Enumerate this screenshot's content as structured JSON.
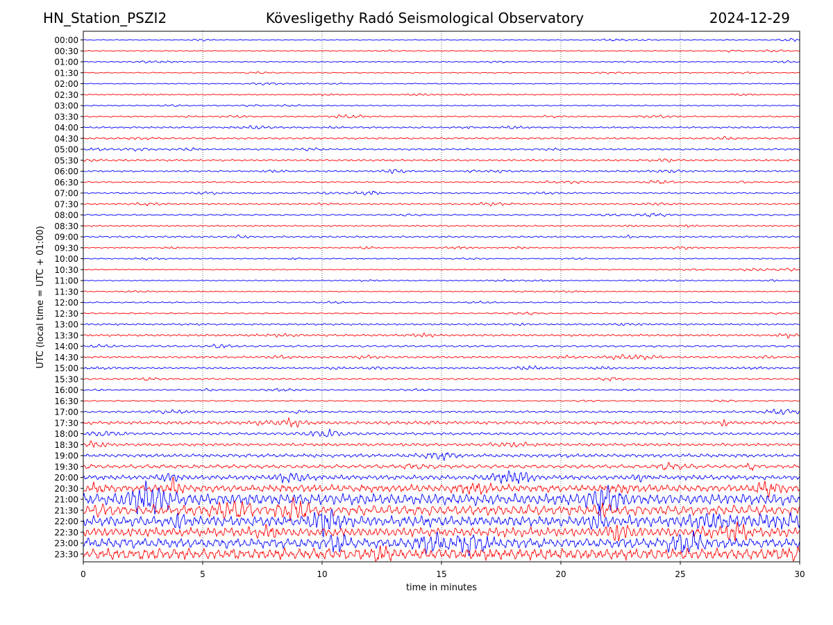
{
  "header": {
    "station": "HN_Station_PSZI2",
    "observatory": "Kövesligethy Radó Seismological Observatory",
    "date": "2024-12-29"
  },
  "chart_data": {
    "type": "line",
    "title": "Kövesligethy Radó Seismological Observatory",
    "xlabel": "time in minutes",
    "ylabel": "UTC (local time = UTC + 01:00)",
    "xlim": [
      0,
      30
    ],
    "x_ticks": [
      "0",
      "5",
      "10",
      "15",
      "20",
      "25",
      "30"
    ],
    "x_grid_minutes": [
      5,
      10,
      15,
      20,
      25
    ],
    "grid": "vertical dotted",
    "colors": {
      "even_rows": "#0000ff",
      "odd_rows": "#ff0000"
    },
    "rows": [
      {
        "label": "00:00",
        "color": "#0000ff",
        "amplitude": 0.8
      },
      {
        "label": "00:30",
        "color": "#ff0000",
        "amplitude": 0.8
      },
      {
        "label": "01:00",
        "color": "#0000ff",
        "amplitude": 0.8
      },
      {
        "label": "01:30",
        "color": "#ff0000",
        "amplitude": 0.8
      },
      {
        "label": "02:00",
        "color": "#0000ff",
        "amplitude": 0.8
      },
      {
        "label": "02:30",
        "color": "#ff0000",
        "amplitude": 0.9
      },
      {
        "label": "03:00",
        "color": "#0000ff",
        "amplitude": 0.9
      },
      {
        "label": "03:30",
        "color": "#ff0000",
        "amplitude": 1.0
      },
      {
        "label": "04:00",
        "color": "#0000ff",
        "amplitude": 1.3
      },
      {
        "label": "04:30",
        "color": "#ff0000",
        "amplitude": 1.4
      },
      {
        "label": "05:00",
        "color": "#0000ff",
        "amplitude": 1.4
      },
      {
        "label": "05:30",
        "color": "#ff0000",
        "amplitude": 1.5
      },
      {
        "label": "06:00",
        "color": "#0000ff",
        "amplitude": 1.3
      },
      {
        "label": "06:30",
        "color": "#ff0000",
        "amplitude": 1.0
      },
      {
        "label": "07:00",
        "color": "#0000ff",
        "amplitude": 1.1
      },
      {
        "label": "07:30",
        "color": "#ff0000",
        "amplitude": 1.2
      },
      {
        "label": "08:00",
        "color": "#0000ff",
        "amplitude": 1.2
      },
      {
        "label": "08:30",
        "color": "#ff0000",
        "amplitude": 1.2
      },
      {
        "label": "09:00",
        "color": "#0000ff",
        "amplitude": 1.3
      },
      {
        "label": "09:30",
        "color": "#ff0000",
        "amplitude": 0.9
      },
      {
        "label": "10:00",
        "color": "#0000ff",
        "amplitude": 0.9
      },
      {
        "label": "10:30",
        "color": "#ff0000",
        "amplitude": 0.8
      },
      {
        "label": "11:00",
        "color": "#0000ff",
        "amplitude": 0.8
      },
      {
        "label": "11:30",
        "color": "#ff0000",
        "amplitude": 0.8
      },
      {
        "label": "12:00",
        "color": "#0000ff",
        "amplitude": 1.0
      },
      {
        "label": "12:30",
        "color": "#ff0000",
        "amplitude": 1.0
      },
      {
        "label": "13:00",
        "color": "#0000ff",
        "amplitude": 1.4
      },
      {
        "label": "13:30",
        "color": "#ff0000",
        "amplitude": 1.6
      },
      {
        "label": "14:00",
        "color": "#0000ff",
        "amplitude": 1.5
      },
      {
        "label": "14:30",
        "color": "#ff0000",
        "amplitude": 1.5
      },
      {
        "label": "15:00",
        "color": "#0000ff",
        "amplitude": 1.4
      },
      {
        "label": "15:30",
        "color": "#ff0000",
        "amplitude": 1.3
      },
      {
        "label": "16:00",
        "color": "#0000ff",
        "amplitude": 1.0
      },
      {
        "label": "16:30",
        "color": "#ff0000",
        "amplitude": 0.9
      },
      {
        "label": "17:00",
        "color": "#0000ff",
        "amplitude": 1.5
      },
      {
        "label": "17:30",
        "color": "#ff0000",
        "amplitude": 2.4
      },
      {
        "label": "18:00",
        "color": "#0000ff",
        "amplitude": 2.0
      },
      {
        "label": "18:30",
        "color": "#ff0000",
        "amplitude": 2.2
      },
      {
        "label": "19:00",
        "color": "#0000ff",
        "amplitude": 2.6
      },
      {
        "label": "19:30",
        "color": "#ff0000",
        "amplitude": 2.8
      },
      {
        "label": "20:00",
        "color": "#0000ff",
        "amplitude": 3.5
      },
      {
        "label": "20:30",
        "color": "#ff0000",
        "amplitude": 5.5
      },
      {
        "label": "21:00",
        "color": "#0000ff",
        "amplitude": 8.5
      },
      {
        "label": "21:30",
        "color": "#ff0000",
        "amplitude": 7.5
      },
      {
        "label": "22:00",
        "color": "#0000ff",
        "amplitude": 8.0
      },
      {
        "label": "22:30",
        "color": "#ff0000",
        "amplitude": 7.0
      },
      {
        "label": "23:00",
        "color": "#0000ff",
        "amplitude": 7.5
      },
      {
        "label": "23:30",
        "color": "#ff0000",
        "amplitude": 8.5
      }
    ]
  }
}
